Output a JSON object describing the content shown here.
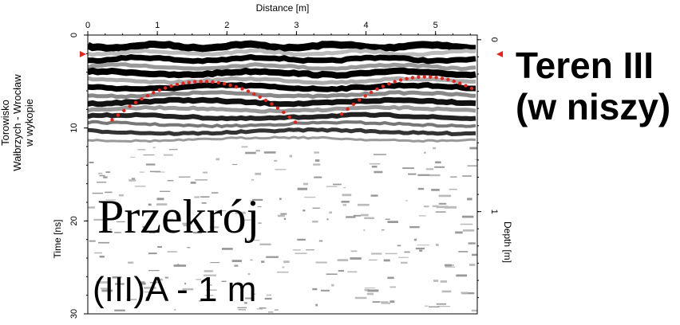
{
  "chart_data": {
    "type": "heatmap",
    "title": "Teren III (w niszy)",
    "xlabel": "Distance [m]",
    "ylabel": "Time [ns]",
    "y2label": "Depth [m]",
    "x_ticks": [
      "0",
      "1",
      "2",
      "3",
      "4",
      "5"
    ],
    "y_ticks": [
      "0",
      "10",
      "20",
      "30"
    ],
    "y2_ticks": [
      "0",
      "1"
    ],
    "xlim": [
      0,
      5.6
    ],
    "ylim": [
      0,
      30
    ],
    "y2_values": [
      0,
      1
    ],
    "y2_ns": [
      0.5,
      19
    ],
    "site_label": [
      "Torowisko",
      "Wałbrzych - Wrocław",
      "w wykopie"
    ],
    "annotations": [
      {
        "text": "Przekrój",
        "x": 0.15,
        "y": 20
      },
      {
        "text": "(III)A - 1 m",
        "x": 0.1,
        "y": 27
      }
    ],
    "hyperbolas": [
      {
        "apex_x": 1.65,
        "apex_y": 5.0,
        "x_range": [
          0.35,
          3.05
        ],
        "end_y": 9.8
      },
      {
        "apex_x": 4.85,
        "apex_y": 4.5,
        "x_range": [
          3.65,
          5.6
        ],
        "end_y": 8.5
      }
    ],
    "hyperbola_color": "#e8231e",
    "marker_color": "#e8231e"
  }
}
